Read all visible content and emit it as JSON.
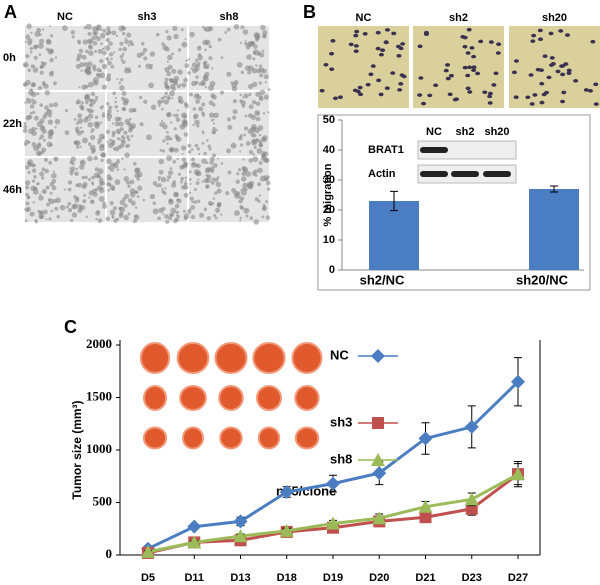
{
  "panel_labels": [
    "A",
    "B",
    "C"
  ],
  "wound_assay": {
    "columns": [
      "NC",
      "sh3",
      "sh8"
    ],
    "rows": [
      "0h",
      "22h",
      "46h"
    ]
  },
  "transwell": {
    "columns": [
      "NC",
      "sh2",
      "sh20"
    ]
  },
  "blot": {
    "lanes": [
      "NC",
      "sh2",
      "sh20"
    ],
    "proteins": [
      "BRAT1",
      "Actin"
    ]
  },
  "chart_data": [
    {
      "type": "bar",
      "y_label": "% migration",
      "categories": [
        "sh2/NC",
        "sh20/NC"
      ],
      "values": [
        23,
        27
      ],
      "errors": [
        3.2,
        1
      ],
      "color": "#4a7dc1",
      "ylim": [
        0,
        50
      ],
      "yticks": [
        0,
        10,
        20,
        30,
        40,
        50
      ]
    },
    {
      "type": "line",
      "y_label": "Tumor size (mm³)",
      "annotation": "n=5/clone",
      "categories": [
        "D5",
        "D11",
        "D13",
        "D18",
        "D19",
        "D20",
        "D21",
        "D23",
        "D27"
      ],
      "series": [
        {
          "name": "NC",
          "color": "#4a7dc1",
          "marker": "diamond",
          "values": [
            60,
            270,
            320,
            600,
            680,
            780,
            1110,
            1220,
            1650
          ],
          "errors": [
            20,
            20,
            40,
            50,
            80,
            110,
            150,
            200,
            230
          ]
        },
        {
          "name": "sh3",
          "color": "#c0504d",
          "marker": "square",
          "values": [
            20,
            120,
            140,
            220,
            260,
            320,
            360,
            440,
            770
          ],
          "errors": [
            10,
            15,
            20,
            25,
            30,
            30,
            40,
            60,
            120
          ]
        },
        {
          "name": "sh8",
          "color": "#9bbb59",
          "marker": "triangle",
          "values": [
            30,
            120,
            180,
            230,
            300,
            350,
            460,
            530,
            770
          ],
          "errors": [
            10,
            15,
            20,
            25,
            30,
            40,
            50,
            60,
            100
          ]
        }
      ],
      "ylim": [
        0,
        2000
      ],
      "yticks": [
        0,
        500,
        1000,
        1500,
        2000
      ]
    }
  ]
}
